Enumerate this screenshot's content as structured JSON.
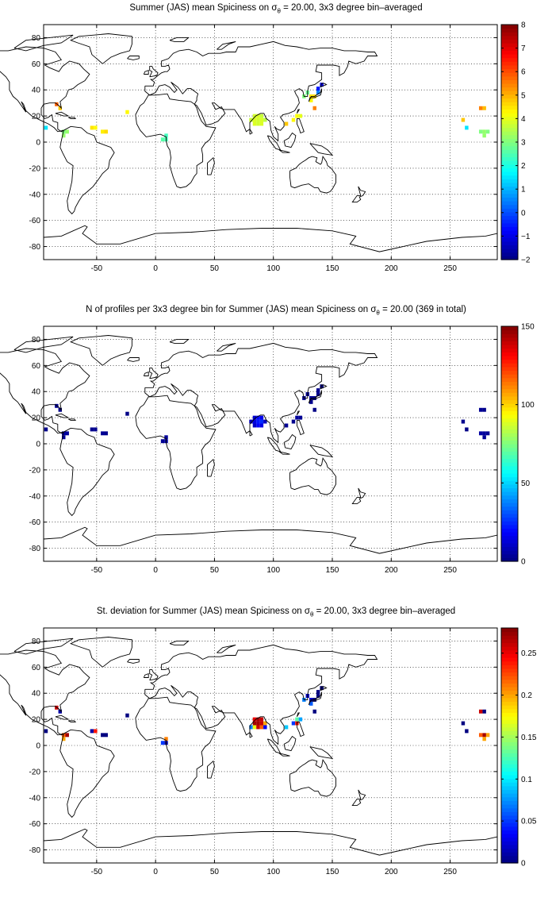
{
  "panels": [
    {
      "title_pre": "Summer (JAS) mean Spiciness on ",
      "title_sigma": "σ",
      "title_sub": "θ",
      "title_post": " = 20.00, 3x3 degree bin–averaged",
      "colorbar": {
        "min": -2,
        "max": 8,
        "ticks": [
          "8",
          "7",
          "6",
          "5",
          "4",
          "3",
          "2",
          "1",
          "0",
          "−1",
          "−2"
        ],
        "tick_values": [
          8,
          7,
          6,
          5,
          4,
          3,
          2,
          1,
          0,
          -1,
          -2
        ]
      }
    },
    {
      "title_pre": "N of profiles per 3x3 degree bin for Summer (JAS) mean Spiciness on ",
      "title_sigma": "σ",
      "title_sub": "θ",
      "title_post": " = 20.00 (369 in total)",
      "colorbar": {
        "min": 0,
        "max": 150,
        "ticks": [
          "150",
          "100",
          "50",
          "0"
        ],
        "tick_values": [
          150,
          100,
          50,
          0
        ]
      }
    },
    {
      "title_pre": "St. deviation for Summer (JAS) mean Spiciness on ",
      "title_sigma": "σ",
      "title_sub": "θ",
      "title_post": " = 20.00, 3x3 degree bin–averaged",
      "colorbar": {
        "min": 0,
        "max": 0.28,
        "ticks": [
          "0.25",
          "0.2",
          "0.15",
          "0.1",
          "0.05",
          "0"
        ],
        "tick_values": [
          0.25,
          0.2,
          0.15,
          0.1,
          0.05,
          0
        ]
      }
    }
  ],
  "map_axes": {
    "x_ticks": [
      "-50",
      "0",
      "50",
      "100",
      "150",
      "200",
      "250"
    ],
    "x_tick_values": [
      -50,
      0,
      50,
      100,
      150,
      200,
      250
    ],
    "y_ticks": [
      "80",
      "60",
      "40",
      "20",
      "0",
      "-20",
      "-40",
      "-60",
      "-80"
    ],
    "y_tick_values": [
      80,
      60,
      40,
      20,
      0,
      -20,
      -40,
      -60,
      -80
    ],
    "xlim": [
      -95,
      290
    ],
    "ylim": [
      -90,
      90
    ],
    "grid": "dotted"
  },
  "colormap": "jet",
  "chart_data": [
    {
      "type": "heatmap",
      "title": "Summer (JAS) mean Spiciness on σθ = 20.00, 3x3 degree bin–averaged",
      "xlabel": "",
      "ylabel": "",
      "xlim": [
        -95,
        290
      ],
      "ylim": [
        -90,
        90
      ],
      "clim": [
        -2,
        8
      ],
      "cells": [
        {
          "lon": -93,
          "lat": 11,
          "v": 1.5
        },
        {
          "lon": -84,
          "lat": 29,
          "v": 5.8
        },
        {
          "lon": -81,
          "lat": 26,
          "v": 4.8
        },
        {
          "lon": -78,
          "lat": 8,
          "v": 3.0
        },
        {
          "lon": -75,
          "lat": 8,
          "v": 3.2
        },
        {
          "lon": -78,
          "lat": 5,
          "v": 3.2
        },
        {
          "lon": -54,
          "lat": 11,
          "v": 4.5
        },
        {
          "lon": -51,
          "lat": 11,
          "v": 4.3
        },
        {
          "lon": -45,
          "lat": 8,
          "v": 4.4
        },
        {
          "lon": -42,
          "lat": 8,
          "v": 4.6
        },
        {
          "lon": -24,
          "lat": 23,
          "v": 4.3
        },
        {
          "lon": 9,
          "lat": 5,
          "v": 2.4
        },
        {
          "lon": 9,
          "lat": 2,
          "v": 2.5
        },
        {
          "lon": 6,
          "lat": 2,
          "v": 2.6
        },
        {
          "lon": 81,
          "lat": 17,
          "v": 3.7
        },
        {
          "lon": 84,
          "lat": 17,
          "v": 3.9
        },
        {
          "lon": 87,
          "lat": 17,
          "v": 3.8
        },
        {
          "lon": 90,
          "lat": 17,
          "v": 3.9
        },
        {
          "lon": 93,
          "lat": 17,
          "v": 3.6
        },
        {
          "lon": 84,
          "lat": 20,
          "v": 3.8
        },
        {
          "lon": 87,
          "lat": 20,
          "v": 3.9
        },
        {
          "lon": 90,
          "lat": 20,
          "v": 3.7
        },
        {
          "lon": 84,
          "lat": 14,
          "v": 3.9
        },
        {
          "lon": 87,
          "lat": 14,
          "v": 3.8
        },
        {
          "lon": 90,
          "lat": 14,
          "v": 3.9
        },
        {
          "lon": 111,
          "lat": 14,
          "v": 4.8
        },
        {
          "lon": 117,
          "lat": 17,
          "v": 4.3
        },
        {
          "lon": 120,
          "lat": 20,
          "v": 4.2
        },
        {
          "lon": 123,
          "lat": 20,
          "v": 4.0
        },
        {
          "lon": 126,
          "lat": 35,
          "v": 3.0
        },
        {
          "lon": 129,
          "lat": 38,
          "v": 2.8
        },
        {
          "lon": 132,
          "lat": 35,
          "v": 4.5
        },
        {
          "lon": 135,
          "lat": 35,
          "v": 4.6
        },
        {
          "lon": 132,
          "lat": 32,
          "v": 4.3
        },
        {
          "lon": 138,
          "lat": 38,
          "v": 0.5
        },
        {
          "lon": 138,
          "lat": 41,
          "v": -0.5
        },
        {
          "lon": 141,
          "lat": 44,
          "v": -0.9
        },
        {
          "lon": 135,
          "lat": 26,
          "v": 5.5
        },
        {
          "lon": 261,
          "lat": 17,
          "v": 4.8
        },
        {
          "lon": 264,
          "lat": 11,
          "v": 1.5
        },
        {
          "lon": 276,
          "lat": 26,
          "v": 5.5
        },
        {
          "lon": 279,
          "lat": 26,
          "v": 4.9
        },
        {
          "lon": 276,
          "lat": 8,
          "v": 3.0
        },
        {
          "lon": 279,
          "lat": 8,
          "v": 3.2
        },
        {
          "lon": 282,
          "lat": 8,
          "v": 3.0
        },
        {
          "lon": 279,
          "lat": 5,
          "v": 3.2
        }
      ]
    },
    {
      "type": "heatmap",
      "title": "N of profiles per 3x3 degree bin for Summer (JAS) mean Spiciness on σθ = 20.00 (369 in total)",
      "xlabel": "",
      "ylabel": "",
      "xlim": [
        -95,
        290
      ],
      "ylim": [
        -90,
        90
      ],
      "clim": [
        0,
        150
      ],
      "cells": [
        {
          "lon": -93,
          "lat": 11,
          "v": 2
        },
        {
          "lon": -84,
          "lat": 29,
          "v": 3
        },
        {
          "lon": -81,
          "lat": 26,
          "v": 2
        },
        {
          "lon": -78,
          "lat": 8,
          "v": 5
        },
        {
          "lon": -75,
          "lat": 8,
          "v": 4
        },
        {
          "lon": -78,
          "lat": 5,
          "v": 3
        },
        {
          "lon": -54,
          "lat": 11,
          "v": 2
        },
        {
          "lon": -51,
          "lat": 11,
          "v": 2
        },
        {
          "lon": -45,
          "lat": 8,
          "v": 3
        },
        {
          "lon": -42,
          "lat": 8,
          "v": 2
        },
        {
          "lon": -24,
          "lat": 23,
          "v": 1
        },
        {
          "lon": 9,
          "lat": 5,
          "v": 4
        },
        {
          "lon": 9,
          "lat": 2,
          "v": 5
        },
        {
          "lon": 6,
          "lat": 2,
          "v": 3
        },
        {
          "lon": 81,
          "lat": 17,
          "v": 8
        },
        {
          "lon": 84,
          "lat": 17,
          "v": 14
        },
        {
          "lon": 87,
          "lat": 17,
          "v": 22
        },
        {
          "lon": 90,
          "lat": 17,
          "v": 25
        },
        {
          "lon": 93,
          "lat": 17,
          "v": 10
        },
        {
          "lon": 84,
          "lat": 20,
          "v": 12
        },
        {
          "lon": 87,
          "lat": 20,
          "v": 20
        },
        {
          "lon": 90,
          "lat": 20,
          "v": 16
        },
        {
          "lon": 84,
          "lat": 14,
          "v": 10
        },
        {
          "lon": 87,
          "lat": 14,
          "v": 18
        },
        {
          "lon": 90,
          "lat": 14,
          "v": 15
        },
        {
          "lon": 111,
          "lat": 14,
          "v": 3
        },
        {
          "lon": 117,
          "lat": 17,
          "v": 2
        },
        {
          "lon": 120,
          "lat": 20,
          "v": 4
        },
        {
          "lon": 123,
          "lat": 20,
          "v": 3
        },
        {
          "lon": 126,
          "lat": 35,
          "v": 2
        },
        {
          "lon": 129,
          "lat": 38,
          "v": 3
        },
        {
          "lon": 132,
          "lat": 35,
          "v": 4
        },
        {
          "lon": 135,
          "lat": 35,
          "v": 3
        },
        {
          "lon": 132,
          "lat": 32,
          "v": 2
        },
        {
          "lon": 138,
          "lat": 38,
          "v": 2
        },
        {
          "lon": 138,
          "lat": 41,
          "v": 2
        },
        {
          "lon": 141,
          "lat": 44,
          "v": 1
        },
        {
          "lon": 135,
          "lat": 26,
          "v": 1
        },
        {
          "lon": 261,
          "lat": 17,
          "v": 2
        },
        {
          "lon": 264,
          "lat": 11,
          "v": 1
        },
        {
          "lon": 276,
          "lat": 26,
          "v": 3
        },
        {
          "lon": 279,
          "lat": 26,
          "v": 2
        },
        {
          "lon": 276,
          "lat": 8,
          "v": 5
        },
        {
          "lon": 279,
          "lat": 8,
          "v": 4
        },
        {
          "lon": 282,
          "lat": 8,
          "v": 3
        },
        {
          "lon": 279,
          "lat": 5,
          "v": 3
        }
      ]
    },
    {
      "type": "heatmap",
      "title": "St. deviation for Summer (JAS) mean Spiciness on σθ = 20.00, 3x3 degree bin–averaged",
      "xlabel": "",
      "ylabel": "",
      "xlim": [
        -95,
        290
      ],
      "ylim": [
        -90,
        90
      ],
      "clim": [
        0,
        0.28
      ],
      "cells": [
        {
          "lon": -93,
          "lat": 11,
          "v": 0.0
        },
        {
          "lon": -84,
          "lat": 29,
          "v": 0.26
        },
        {
          "lon": -81,
          "lat": 26,
          "v": 0.01
        },
        {
          "lon": -78,
          "lat": 8,
          "v": 0.22
        },
        {
          "lon": -75,
          "lat": 8,
          "v": 0.27
        },
        {
          "lon": -78,
          "lat": 5,
          "v": 0.2
        },
        {
          "lon": -54,
          "lat": 11,
          "v": 0.01
        },
        {
          "lon": -51,
          "lat": 11,
          "v": 0.24
        },
        {
          "lon": -45,
          "lat": 8,
          "v": 0.0
        },
        {
          "lon": -42,
          "lat": 8,
          "v": 0.0
        },
        {
          "lon": -24,
          "lat": 23,
          "v": 0.0
        },
        {
          "lon": 9,
          "lat": 5,
          "v": 0.21
        },
        {
          "lon": 9,
          "lat": 2,
          "v": 0.01
        },
        {
          "lon": 6,
          "lat": 2,
          "v": 0.05
        },
        {
          "lon": 81,
          "lat": 14,
          "v": 0.07
        },
        {
          "lon": 84,
          "lat": 14,
          "v": 0.17
        },
        {
          "lon": 87,
          "lat": 14,
          "v": 0.26
        },
        {
          "lon": 90,
          "lat": 14,
          "v": 0.22
        },
        {
          "lon": 84,
          "lat": 17,
          "v": 0.27
        },
        {
          "lon": 87,
          "lat": 17,
          "v": 0.27
        },
        {
          "lon": 90,
          "lat": 17,
          "v": 0.26
        },
        {
          "lon": 93,
          "lat": 17,
          "v": 0.2
        },
        {
          "lon": 84,
          "lat": 20,
          "v": 0.25
        },
        {
          "lon": 87,
          "lat": 20,
          "v": 0.27
        },
        {
          "lon": 90,
          "lat": 20,
          "v": 0.26
        },
        {
          "lon": 93,
          "lat": 14,
          "v": 0.03
        },
        {
          "lon": 111,
          "lat": 14,
          "v": 0.09
        },
        {
          "lon": 117,
          "lat": 17,
          "v": 0.05
        },
        {
          "lon": 120,
          "lat": 17,
          "v": 0.24
        },
        {
          "lon": 120,
          "lat": 20,
          "v": 0.13
        },
        {
          "lon": 123,
          "lat": 20,
          "v": 0.08
        },
        {
          "lon": 126,
          "lat": 35,
          "v": 0.07
        },
        {
          "lon": 129,
          "lat": 38,
          "v": 0.02
        },
        {
          "lon": 132,
          "lat": 35,
          "v": 0.02
        },
        {
          "lon": 135,
          "lat": 35,
          "v": 0.0
        },
        {
          "lon": 132,
          "lat": 32,
          "v": 0.06
        },
        {
          "lon": 138,
          "lat": 38,
          "v": 0.0
        },
        {
          "lon": 138,
          "lat": 41,
          "v": 0.0
        },
        {
          "lon": 141,
          "lat": 44,
          "v": 0.0
        },
        {
          "lon": 135,
          "lat": 26,
          "v": 0.0
        },
        {
          "lon": 261,
          "lat": 17,
          "v": 0.0
        },
        {
          "lon": 264,
          "lat": 11,
          "v": 0.0
        },
        {
          "lon": 276,
          "lat": 26,
          "v": 0.26
        },
        {
          "lon": 279,
          "lat": 26,
          "v": 0.0
        },
        {
          "lon": 276,
          "lat": 8,
          "v": 0.22
        },
        {
          "lon": 279,
          "lat": 8,
          "v": 0.27
        },
        {
          "lon": 282,
          "lat": 8,
          "v": 0.2
        },
        {
          "lon": 279,
          "lat": 5,
          "v": 0.2
        }
      ]
    }
  ]
}
